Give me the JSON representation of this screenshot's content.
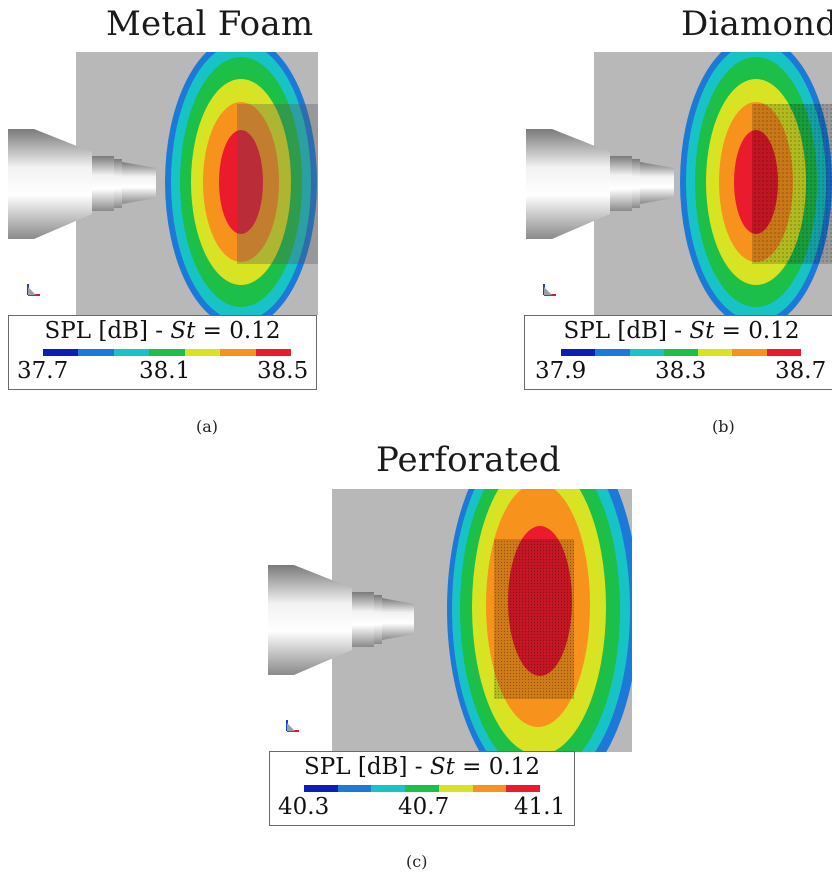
{
  "colormap": [
    "#0b1fb8",
    "#1d79d8",
    "#18c3c6",
    "#1cbf48",
    "#d8e324",
    "#f7921c",
    "#ea1b2c"
  ],
  "colors": {
    "background": "#b8b8b8",
    "nozzle": "#d9d9d9",
    "porous_overlay": "#555555"
  },
  "panels": [
    {
      "id": "a",
      "title": "Metal Foam",
      "caption": "(a)",
      "legend": {
        "quantity": "SPL [dB] -",
        "symbol": "St",
        "relation": "= 0.12",
        "ticks": [
          "37.7",
          "38.1",
          "38.5"
        ]
      }
    },
    {
      "id": "b",
      "title": "Diamond",
      "caption": "(b)",
      "legend": {
        "quantity": "SPL [dB] -",
        "symbol": "St",
        "relation": "= 0.12",
        "ticks": [
          "37.9",
          "38.3",
          "38.7"
        ]
      }
    },
    {
      "id": "c",
      "title": "Perforated",
      "caption": "(c)",
      "legend": {
        "quantity": "SPL [dB] -",
        "symbol": "St",
        "relation": "= 0.12",
        "ticks": [
          "40.3",
          "40.7",
          "41.1"
        ]
      }
    }
  ]
}
